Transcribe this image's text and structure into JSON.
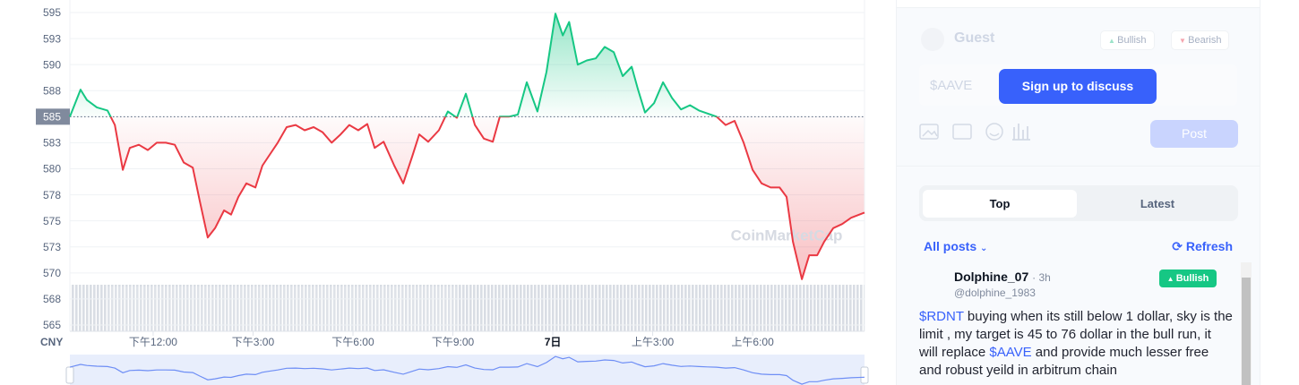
{
  "chart_data": {
    "type": "line",
    "axis_unit_label": "CNY",
    "watermark": "CoinMarketCap",
    "x": [
      0,
      0.32,
      0.51,
      0.81,
      1.13,
      1.35,
      1.59,
      1.8,
      2.07,
      2.34,
      2.61,
      2.88,
      3.15,
      3.42,
      3.69,
      3.9,
      4.14,
      4.36,
      4.63,
      4.84,
      5.06,
      5.3,
      5.57,
      5.78,
      5.97,
      6.24,
      6.51,
      6.78,
      7.05,
      7.32,
      7.59,
      7.86,
      8.13,
      8.39,
      8.66,
      8.93,
      9.15,
      9.42,
      9.74,
      10.01,
      10.28,
      10.49,
      10.76,
      11.08,
      11.35,
      11.62,
      11.89,
      12.16,
      12.43,
      12.7,
      12.91,
      13.18,
      13.45,
      13.72,
      14.04,
      14.31,
      14.58,
      14.8,
      14.99,
      15.25,
      15.52,
      15.79,
      16.06,
      16.33,
      16.6,
      16.87,
      17.06,
      17.27,
      17.54,
      17.81,
      18.08,
      18.35,
      18.62,
      18.89,
      19.15,
      19.42,
      19.69,
      19.96,
      20.23,
      20.5,
      20.77,
      21.04,
      21.31,
      21.52,
      21.71,
      21.98,
      22.2,
      22.44,
      22.65,
      22.92,
      23.19,
      23.46,
      23.86
    ],
    "values": [
      585.0,
      587.6,
      586.6,
      585.9,
      585.6,
      584.2,
      579.9,
      582.0,
      582.3,
      581.8,
      582.5,
      582.5,
      582.3,
      580.6,
      580.1,
      576.9,
      573.4,
      574.3,
      576.0,
      575.6,
      577.3,
      578.6,
      578.2,
      580.3,
      581.2,
      582.5,
      584.0,
      584.2,
      583.7,
      584.0,
      583.5,
      582.5,
      583.3,
      584.2,
      583.7,
      584.3,
      582.0,
      582.6,
      580.3,
      578.6,
      581.2,
      583.3,
      582.6,
      583.7,
      585.5,
      584.9,
      587.2,
      584.2,
      582.9,
      582.6,
      585.0,
      585.0,
      585.2,
      588.3,
      585.5,
      589.3,
      594.9,
      592.8,
      594.1,
      590.0,
      590.4,
      590.6,
      591.7,
      591.2,
      588.9,
      589.8,
      587.6,
      585.4,
      586.3,
      588.3,
      586.8,
      585.7,
      586.1,
      585.6,
      585.3,
      585.0,
      584.2,
      584.6,
      582.5,
      579.9,
      578.6,
      578.2,
      578.2,
      577.3,
      573.0,
      569.4,
      571.7,
      571.7,
      573.0,
      574.3,
      574.7,
      575.3,
      575.8
    ],
    "baseline": 585,
    "color_up": "#16c784",
    "color_down": "#ea3943",
    "xlim": [
      0,
      23.86
    ],
    "xticks": [
      {
        "value": 2.5,
        "label": "下午12:00"
      },
      {
        "value": 5.5,
        "label": "下午3:00"
      },
      {
        "value": 8.5,
        "label": "下午6:00"
      },
      {
        "value": 11.5,
        "label": "下午9:00"
      },
      {
        "value": 14.5,
        "label": "7日"
      },
      {
        "value": 17.5,
        "label": "上午3:00"
      },
      {
        "value": 20.5,
        "label": "上午6:00"
      }
    ],
    "ylim": [
      565,
      595
    ],
    "yticks": [
      565,
      {
        "value": 567.5,
        "label": "568"
      },
      570,
      {
        "value": 572.5,
        "label": "573"
      },
      575,
      {
        "value": 577.5,
        "label": "578"
      },
      580,
      {
        "value": 582.5,
        "label": "583"
      },
      585,
      {
        "value": 587.5,
        "label": "588"
      },
      590,
      {
        "value": 592.5,
        "label": "593"
      },
      595
    ],
    "grid": true
  },
  "panel": {
    "user": "Guest",
    "bullish": "Bullish",
    "bearish": "Bearish",
    "input_placeholder": "$AAVE",
    "signup_button": "Sign up to discuss",
    "post_button": "Post",
    "tabs": [
      "Top",
      "Latest"
    ],
    "filter": "All posts",
    "refresh": "Refresh",
    "post": {
      "author": "Dolphine_07",
      "time": "· 3h",
      "handle": "@dolphine_1983",
      "sentiment": "Bullish",
      "text": [
        "$RDNT",
        " buying when its still below 1 dollar, sky is the limit , my target is 45 to 76 dollar in the bull run, it will replace ",
        "$AAVE",
        " and provide much lesser free and robust yeild in arbitrum chain"
      ]
    }
  }
}
